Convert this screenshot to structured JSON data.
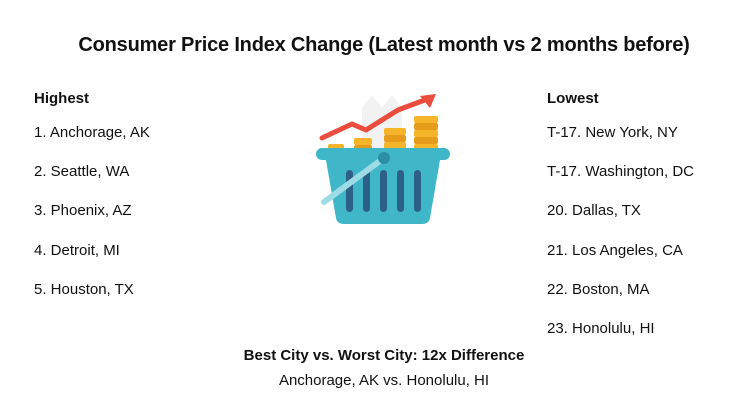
{
  "title": "Consumer Price Index Change (Latest month vs 2 months before)",
  "highest": {
    "heading": "Highest",
    "items": [
      "1. Anchorage, AK",
      "2. Seattle, WA",
      "3. Phoenix, AZ",
      "4. Detroit, MI",
      "5. Houston, TX"
    ]
  },
  "lowest": {
    "heading": "Lowest",
    "items": [
      "T-17. New York, NY",
      "T-17. Washington, DC",
      "20. Dallas, TX",
      "21. Los Angeles, CA",
      "22. Boston, MA",
      "23. Honolulu, HI"
    ]
  },
  "illustration": {
    "icon": "shopping-basket-with-coins-and-rising-arrow-icon",
    "colors": {
      "basket": "#3fb7c9",
      "basket_dark": "#2a8fa3",
      "slats": "#2e5f86",
      "coins": "#f6b42a",
      "arrow": "#ea4d3d"
    }
  },
  "footer": {
    "headline": "Best City vs. Worst City: 12x Difference",
    "subline": "Anchorage, AK vs. Honolulu, HI"
  }
}
